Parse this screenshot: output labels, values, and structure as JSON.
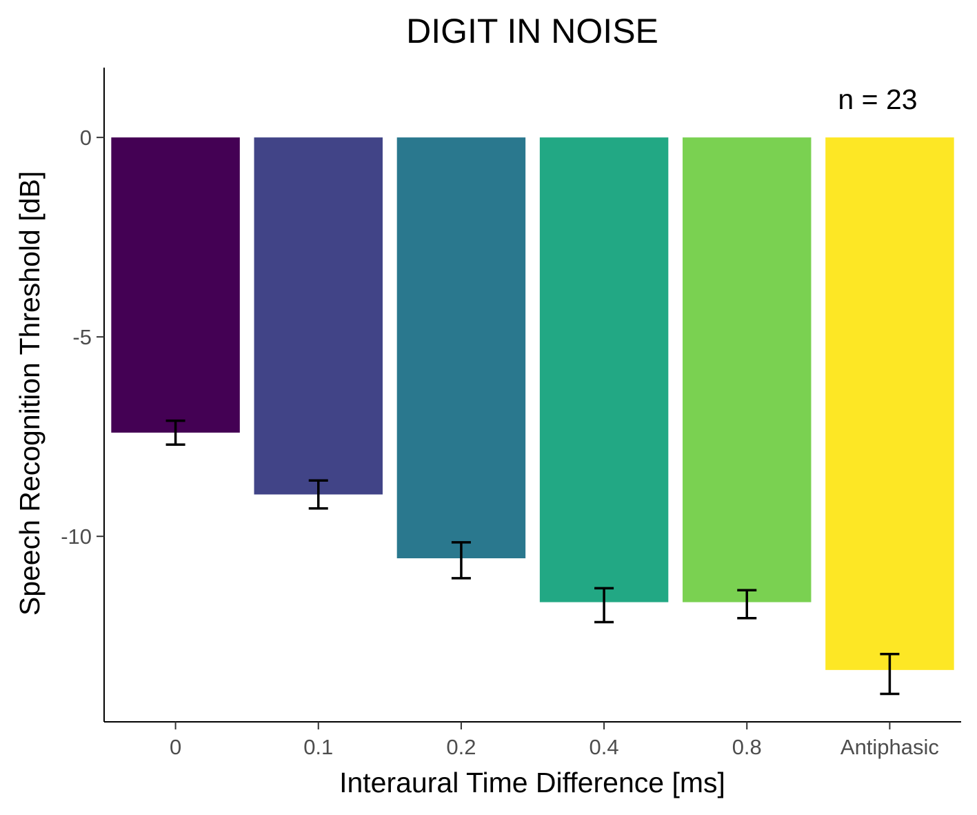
{
  "chart_data": {
    "type": "bar",
    "title": "DIGIT IN NOISE",
    "xlabel": "Interaural Time Difference [ms]",
    "ylabel": "Speech Recognition Threshold [dB]",
    "annotation": "n = 23",
    "categories": [
      "0",
      "0.1",
      "0.2",
      "0.4",
      "0.8",
      "Antiphasic"
    ],
    "values": [
      -7.4,
      -8.95,
      -10.55,
      -11.65,
      -11.65,
      -13.35
    ],
    "error_low": [
      -7.7,
      -9.3,
      -11.05,
      -12.15,
      -12.05,
      -13.95
    ],
    "error_high": [
      -7.1,
      -8.6,
      -10.15,
      -11.3,
      -11.35,
      -12.95
    ],
    "colors": [
      "#440154",
      "#414487",
      "#2a788e",
      "#22a884",
      "#7ad151",
      "#fde725"
    ],
    "yticks": [
      0,
      -5,
      -10
    ],
    "ytick_labels": [
      "0",
      "-5",
      "-10"
    ],
    "ylim": [
      -14.65,
      1.75
    ],
    "grid": false,
    "legend": "none"
  }
}
